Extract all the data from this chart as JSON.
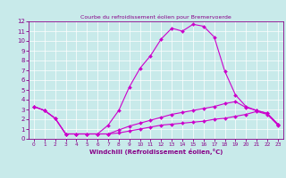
{
  "title": "Courbe du refroidissement éolien pour Bremervoerde",
  "xlabel": "Windchill (Refroidissement éolien,°C)",
  "bg_color": "#c8eaea",
  "grid_color": "#ffffff",
  "line_color": "#cc00cc",
  "xlim": [
    -0.5,
    23.5
  ],
  "ylim": [
    0,
    12
  ],
  "xticks": [
    0,
    1,
    2,
    3,
    4,
    5,
    6,
    7,
    8,
    9,
    10,
    11,
    12,
    13,
    14,
    15,
    16,
    17,
    18,
    19,
    20,
    21,
    22,
    23
  ],
  "yticks": [
    0,
    1,
    2,
    3,
    4,
    5,
    6,
    7,
    8,
    9,
    10,
    11,
    12
  ],
  "line1_x": [
    0,
    1,
    2,
    3,
    4,
    5,
    6,
    7,
    8,
    9,
    10,
    11,
    12,
    13,
    14,
    15,
    16,
    17,
    18,
    19,
    20,
    21,
    22,
    23
  ],
  "line1_y": [
    3.3,
    2.9,
    2.1,
    0.5,
    0.5,
    0.5,
    0.5,
    1.4,
    2.9,
    5.3,
    7.2,
    8.5,
    10.2,
    11.3,
    11.0,
    11.7,
    11.5,
    10.4,
    6.9,
    4.5,
    3.3,
    2.9,
    2.6,
    1.5
  ],
  "line2_x": [
    0,
    1,
    2,
    3,
    4,
    5,
    6,
    7,
    8,
    9,
    10,
    11,
    12,
    13,
    14,
    15,
    16,
    17,
    18,
    19,
    20,
    21,
    22,
    23
  ],
  "line2_y": [
    3.3,
    2.9,
    2.1,
    0.5,
    0.5,
    0.5,
    0.5,
    0.5,
    0.9,
    1.3,
    1.6,
    1.9,
    2.2,
    2.5,
    2.7,
    2.9,
    3.1,
    3.3,
    3.6,
    3.8,
    3.2,
    2.9,
    2.6,
    1.5
  ],
  "line3_x": [
    0,
    1,
    2,
    3,
    4,
    5,
    6,
    7,
    8,
    9,
    10,
    11,
    12,
    13,
    14,
    15,
    16,
    17,
    18,
    19,
    20,
    21,
    22,
    23
  ],
  "line3_y": [
    3.3,
    2.9,
    2.1,
    0.5,
    0.5,
    0.5,
    0.5,
    0.5,
    0.6,
    0.8,
    1.0,
    1.2,
    1.4,
    1.5,
    1.6,
    1.7,
    1.8,
    2.0,
    2.1,
    2.3,
    2.5,
    2.8,
    2.5,
    1.4
  ]
}
